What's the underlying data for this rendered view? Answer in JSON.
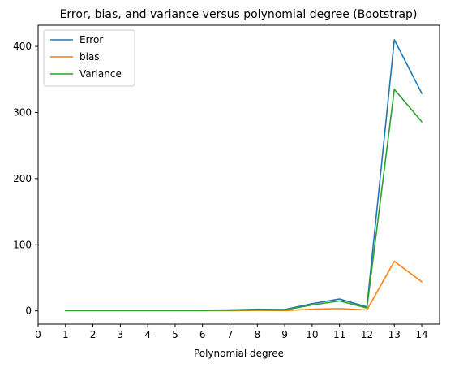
{
  "chart_data": {
    "type": "line",
    "title": "Error, bias, and variance versus polynomial degree (Bootstrap)",
    "xlabel": "Polynomial degree",
    "ylabel": "",
    "x": [
      1,
      2,
      3,
      4,
      5,
      6,
      7,
      8,
      9,
      10,
      11,
      12,
      13,
      14
    ],
    "xticks": [
      0,
      1,
      2,
      3,
      4,
      5,
      6,
      7,
      8,
      9,
      10,
      11,
      12,
      13,
      14
    ],
    "yticks": [
      0,
      100,
      200,
      300,
      400
    ],
    "xlim": [
      0,
      14.65
    ],
    "ylim": [
      -20,
      432
    ],
    "grid": false,
    "legend_position": "top-left",
    "series": [
      {
        "name": "Error",
        "color": "#1f77b4",
        "values": [
          1,
          1,
          1,
          1,
          1,
          1,
          1.5,
          2.5,
          2,
          11,
          18,
          6,
          410,
          329
        ]
      },
      {
        "name": "bias",
        "color": "#ff7f0e",
        "values": [
          0.3,
          0.3,
          0.3,
          0.3,
          0.3,
          0.3,
          0.4,
          0.8,
          0.5,
          2.5,
          3.5,
          1.5,
          75,
          44
        ]
      },
      {
        "name": "Variance",
        "color": "#2ca02c",
        "values": [
          0.7,
          0.7,
          0.7,
          0.7,
          0.7,
          0.7,
          1.1,
          1.7,
          1.5,
          9,
          15,
          4.5,
          335,
          286
        ]
      }
    ]
  }
}
